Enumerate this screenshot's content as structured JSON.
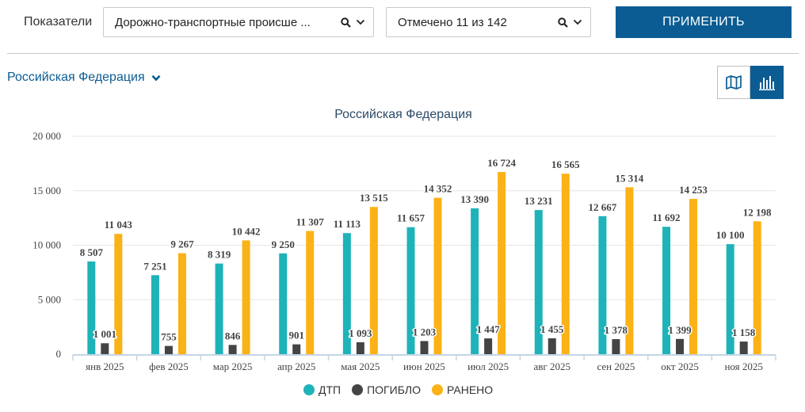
{
  "filters": {
    "label": "Показатели",
    "indicator_value": "Дорожно-транспортные происше ...",
    "selection_value": "Отмечено 11 из 142",
    "apply_label": "ПРИМЕНИТЬ"
  },
  "region": {
    "label": "Российская Федерация"
  },
  "view": {
    "map_icon": "map-icon",
    "chart_icon": "bar-chart-icon",
    "active": "chart"
  },
  "colors": {
    "primary": "#0b5c93",
    "dtp": "#1eb3b8",
    "killed": "#444444",
    "injured": "#fbb216"
  },
  "chart_data": {
    "type": "bar",
    "title": "Российская Федерация",
    "categories": [
      "янв 2025",
      "фев 2025",
      "мар 2025",
      "апр 2025",
      "мая 2025",
      "июн 2025",
      "июл 2025",
      "авг 2025",
      "сен 2025",
      "окт 2025",
      "ноя 2025"
    ],
    "series": [
      {
        "name": "ДТП",
        "color": "#1eb3b8",
        "values": [
          8507,
          7251,
          8319,
          9250,
          11113,
          11657,
          13390,
          13231,
          12667,
          11692,
          10100
        ],
        "labels": [
          "8 507",
          "7 251",
          "8 319",
          "9 250",
          "11 113",
          "11 657",
          "13 390",
          "13 231",
          "12 667",
          "11 692",
          "10 100"
        ]
      },
      {
        "name": "ПОГИБЛО",
        "color": "#444444",
        "values": [
          1001,
          755,
          846,
          901,
          1093,
          1203,
          1447,
          1455,
          1378,
          1399,
          1158
        ],
        "labels": [
          "1 001",
          "755",
          "846",
          "901",
          "1 093",
          "1 203",
          "1 447",
          "1 455",
          "1 378",
          "1 399",
          "1 158"
        ]
      },
      {
        "name": "РАНЕНО",
        "color": "#fbb216",
        "values": [
          11043,
          9267,
          10442,
          11307,
          13515,
          14352,
          16724,
          16565,
          15314,
          14253,
          12198
        ],
        "labels": [
          "11 043",
          "9 267",
          "10 442",
          "11 307",
          "13 515",
          "14 352",
          "16 724",
          "16 565",
          "15 314",
          "14 253",
          "12 198"
        ]
      }
    ],
    "yticks": [
      0,
      5000,
      10000,
      15000,
      20000
    ],
    "ytick_labels": [
      "0",
      "5 000",
      "10 000",
      "15 000",
      "20 000"
    ],
    "ylim": [
      0,
      20000
    ],
    "grid": true,
    "legend_position": "bottom"
  }
}
